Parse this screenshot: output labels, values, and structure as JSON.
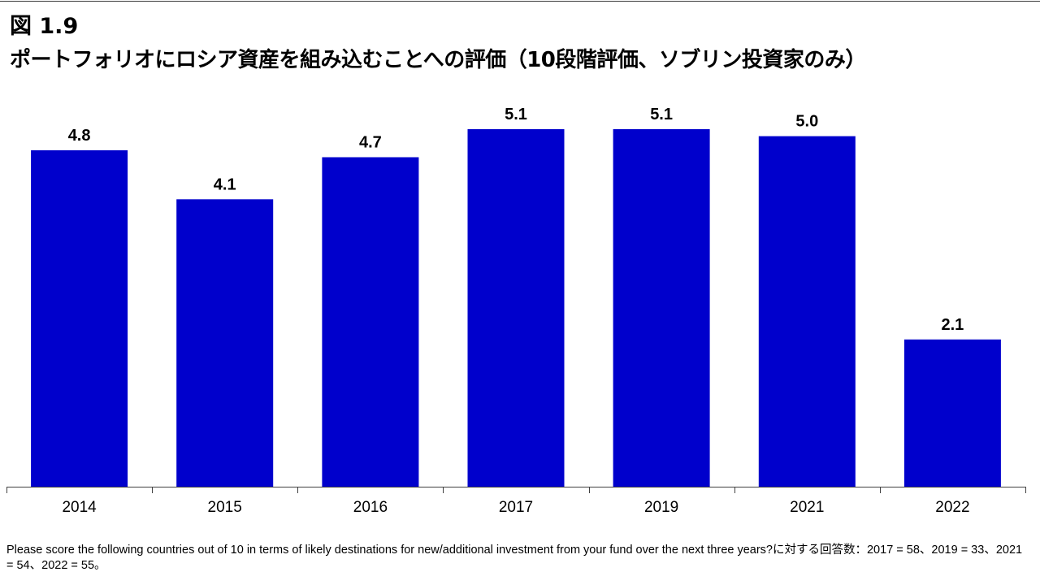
{
  "figure": {
    "label": "図 1.9",
    "title": "ポートフォリオにロシア資産を組み込むことへの評価（10段階評価、ソブリン投資家のみ）",
    "footnote": "Please score the following countries out of 10 in terms of likely destinations for new/additional investment from your fund over the next three years?に対する回答数：2017 = 58、2019 = 33、2021 = 54、2022 = 55。"
  },
  "colors": {
    "bar": "#0000cc",
    "axis": "#404040",
    "text": "#000000"
  },
  "chart_data": {
    "type": "bar",
    "categories": [
      "2014",
      "2015",
      "2016",
      "2017",
      "2019",
      "2021",
      "2022"
    ],
    "values": [
      4.8,
      4.1,
      4.7,
      5.1,
      5.1,
      5.0,
      2.1
    ],
    "data_labels": [
      "4.8",
      "4.1",
      "4.7",
      "5.1",
      "5.1",
      "5.0",
      "2.1"
    ],
    "title": "ポートフォリオにロシア資産を組み込むことへの評価（10段階評価、ソブリン投資家のみ）",
    "xlabel": "",
    "ylabel": "",
    "ylim": [
      0,
      5.1
    ],
    "grid": false,
    "legend": "none"
  }
}
